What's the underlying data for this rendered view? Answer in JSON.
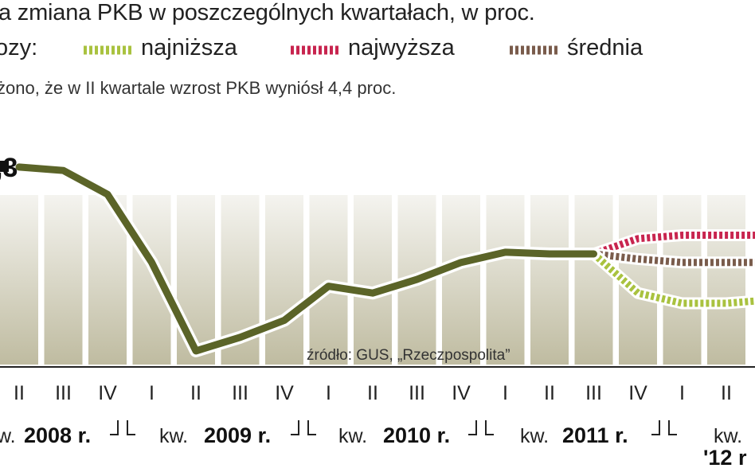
{
  "header": {
    "title": "a zmiana PKB w poszczególnych kwartałach, w proc.",
    "legend_lead": "ozy:",
    "note": "żono, że w II kwartale wzrost PKB wyniósł 4,4 proc."
  },
  "colors": {
    "actual": "#5b6428",
    "najnizsza": "#a9c23f",
    "najwyzsza": "#c8254f",
    "srednia": "#7a5c4c",
    "band": "#b8b496",
    "band_light": "#dfe6e8"
  },
  "chart_data": {
    "type": "line",
    "title": "a zmiana PKB w poszczególnych kwartałach, w proc.",
    "source": "źródło: GUS, „Rzeczpospolita”",
    "first_point_label": ",3",
    "x_quarters": [
      "II",
      "III",
      "IV",
      "I",
      "II",
      "III",
      "IV",
      "I",
      "II",
      "III",
      "IV",
      "I",
      "II",
      "III",
      "IV",
      "I",
      "II"
    ],
    "year_groups": [
      {
        "prefix": "w.",
        "year": "2008 r."
      },
      {
        "prefix": "kw.",
        "year": "2009 r."
      },
      {
        "prefix": "kw.",
        "year": "2010 r."
      },
      {
        "prefix": "kw.",
        "year": "2011 r."
      },
      {
        "prefix": "kw.",
        "year": "'12 r"
      }
    ],
    "ylim": [
      0.5,
      7
    ],
    "series": [
      {
        "key": "actual",
        "values": [
          6.3,
          6.2,
          5.5,
          3.5,
          0.9,
          1.3,
          1.8,
          2.8,
          2.6,
          3.0,
          3.5,
          3.8,
          3.75,
          3.75
        ]
      },
      {
        "key": "najwyzsza",
        "start_index": 13,
        "values": [
          3.75,
          4.2,
          4.3,
          4.3,
          4.3
        ]
      },
      {
        "key": "srednia",
        "start_index": 13,
        "values": [
          3.75,
          3.6,
          3.5,
          3.5,
          3.5
        ]
      },
      {
        "key": "najnizsza",
        "start_index": 13,
        "values": [
          3.75,
          2.6,
          2.3,
          2.3,
          2.4
        ]
      }
    ],
    "legend": [
      {
        "key": "najnizsza",
        "label": "najniższa"
      },
      {
        "key": "najwyzsza",
        "label": "najwyższa"
      },
      {
        "key": "srednia",
        "label": "średnia"
      }
    ]
  }
}
